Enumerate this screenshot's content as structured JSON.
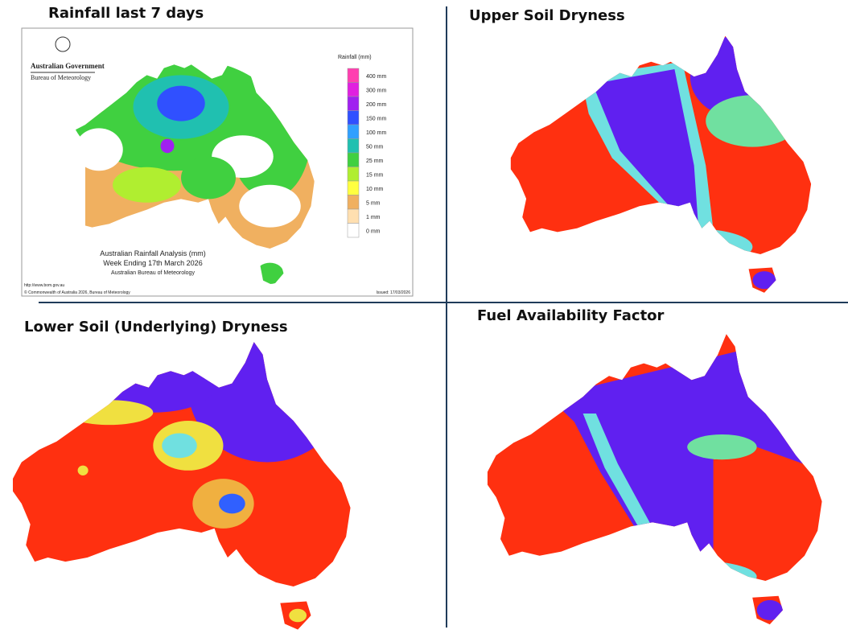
{
  "panels": [
    {
      "title": "Rainfall last 7 days"
    },
    {
      "title": "Upper Soil Dryness"
    },
    {
      "title": "Lower Soil (Underlying) Dryness"
    },
    {
      "title": "Fuel Availability Factor"
    }
  ],
  "rainfall_map": {
    "agency": "Australian Government",
    "bureau": "Bureau of Meteorology",
    "legend_title": "Rainfall (mm)",
    "legend": [
      "400 mm",
      "300 mm",
      "200 mm",
      "150 mm",
      "100 mm",
      "50 mm",
      "25 mm",
      "15 mm",
      "10 mm",
      "5 mm",
      "1 mm",
      "0 mm"
    ],
    "caption": [
      "Australian Rainfall Analysis (mm)",
      "Week Ending 17th March 2026",
      "Australian Bureau of Meteorology"
    ],
    "url": "http://www.bom.gov.au",
    "copyright": "© Commonwealth of Australia 2026, Bureau of Meteorology",
    "issued": "Issued: 17/03/2026"
  }
}
